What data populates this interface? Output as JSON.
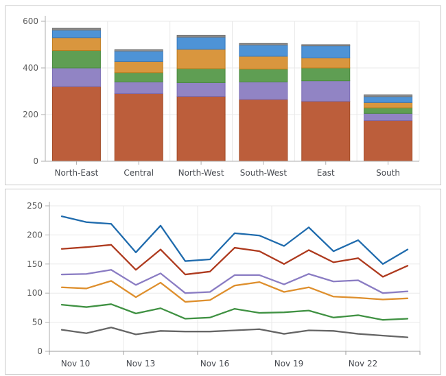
{
  "page": {
    "background": "#ffffff"
  },
  "colors": {
    "panel_border": "#c8c8c8",
    "axis_line": "#adadad",
    "grid_line": "#e8e8e8",
    "x_label_color": "#46494f",
    "y_label_color": "#5a5a5a"
  },
  "chart_data": [
    {
      "type": "bar",
      "stacked": true,
      "title": "",
      "categories": [
        "North-East",
        "Central",
        "North-West",
        "South-West",
        "East",
        "South"
      ],
      "series": [
        {
          "name": "series-1-sienna",
          "color": "#BC5E3B",
          "border_color": "#A14A25",
          "values": [
            320,
            290,
            278,
            265,
            257,
            175
          ]
        },
        {
          "name": "series-2-purple",
          "color": "#9184C4",
          "border_color": "#7A6CB4",
          "values": [
            80,
            50,
            59,
            75,
            88,
            30
          ]
        },
        {
          "name": "series-3-green",
          "color": "#5F9E53",
          "border_color": "#4A8A3F",
          "values": [
            75,
            40,
            60,
            55,
            55,
            24
          ]
        },
        {
          "name": "series-4-orange",
          "color": "#D9963E",
          "border_color": "#C07C1C",
          "values": [
            55,
            48,
            83,
            55,
            43,
            23
          ]
        },
        {
          "name": "series-5-blue",
          "color": "#4E93D6",
          "border_color": "#3579BE",
          "values": [
            32,
            44,
            52,
            48,
            52,
            25
          ]
        },
        {
          "name": "series-6-gray",
          "color": "#8F8F8F",
          "border_color": "#767676",
          "values": [
            8,
            6,
            8,
            7,
            5,
            8
          ]
        }
      ],
      "xlabel": "",
      "ylabel": "",
      "ylim": [
        0,
        600
      ],
      "yticks": [
        0,
        200,
        400,
        600
      ],
      "grid": true,
      "legend": "none"
    },
    {
      "type": "line",
      "title": "",
      "x": [
        "Nov 10",
        "Nov 11",
        "Nov 12",
        "Nov 13",
        "Nov 14",
        "Nov 15",
        "Nov 16",
        "Nov 17",
        "Nov 18",
        "Nov 19",
        "Nov 20",
        "Nov 21",
        "Nov 22",
        "Nov 23",
        "Nov 24"
      ],
      "xtick_labels": [
        "Nov 10",
        "Nov 13",
        "Nov 16",
        "Nov 19",
        "Nov 22"
      ],
      "series": [
        {
          "name": "line-blue",
          "color": "#1F6BAD",
          "values": [
            232,
            222,
            219,
            170,
            216,
            155,
            158,
            203,
            199,
            181,
            213,
            172,
            191,
            150,
            175
          ]
        },
        {
          "name": "line-red",
          "color": "#AE3A1E",
          "values": [
            176,
            179,
            183,
            140,
            175,
            132,
            137,
            178,
            172,
            150,
            174,
            153,
            160,
            128,
            147
          ]
        },
        {
          "name": "line-purple",
          "color": "#8A7CC3",
          "values": [
            132,
            133,
            140,
            114,
            134,
            100,
            102,
            131,
            131,
            115,
            133,
            120,
            122,
            100,
            103
          ]
        },
        {
          "name": "line-orange",
          "color": "#DE8F2D",
          "values": [
            110,
            108,
            121,
            93,
            118,
            85,
            88,
            113,
            119,
            102,
            110,
            94,
            92,
            89,
            91
          ]
        },
        {
          "name": "line-green",
          "color": "#3F9142",
          "values": [
            80,
            76,
            81,
            65,
            74,
            56,
            58,
            73,
            66,
            67,
            70,
            58,
            62,
            54,
            56
          ]
        },
        {
          "name": "line-gray",
          "color": "#656565",
          "values": [
            37,
            31,
            41,
            29,
            35,
            34,
            34,
            36,
            38,
            30,
            36,
            35,
            30,
            27,
            24
          ]
        }
      ],
      "xlabel": "",
      "ylabel": "",
      "ylim": [
        0,
        250
      ],
      "yticks": [
        0,
        50,
        100,
        150,
        200,
        250
      ],
      "grid": true,
      "legend": "none"
    }
  ]
}
